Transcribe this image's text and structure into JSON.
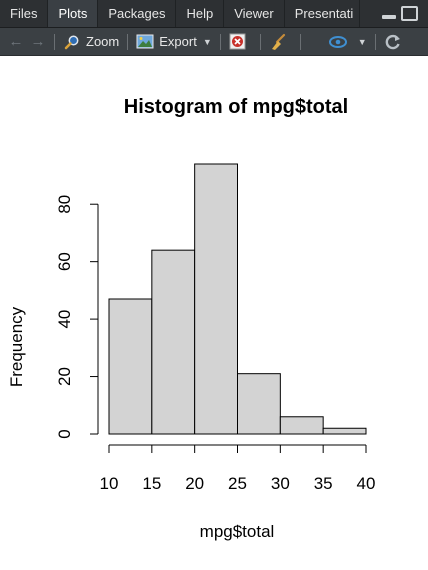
{
  "tabs": [
    {
      "label": "Files",
      "active": false
    },
    {
      "label": "Plots",
      "active": true
    },
    {
      "label": "Packages",
      "active": false
    },
    {
      "label": "Help",
      "active": false
    },
    {
      "label": "Viewer",
      "active": false
    },
    {
      "label": "Presentati",
      "active": false
    }
  ],
  "toolbar": {
    "zoom_label": "Zoom",
    "export_label": "Export"
  },
  "icons": {
    "back": "arrow-left-icon",
    "forward": "arrow-right-icon",
    "zoom": "magnifier-icon",
    "export": "export-image-icon",
    "remove": "remove-plot-icon",
    "clear": "broom-icon",
    "publish": "publish-icon",
    "refresh": "refresh-icon"
  },
  "colors": {
    "tabbar_bg": "#2d3033",
    "toolbar_bg": "#3b4044",
    "bar_fill": "#d3d3d3",
    "bar_stroke": "#000000"
  },
  "chart_data": {
    "type": "bar",
    "title": "Histogram of mpg$total",
    "xlabel": "mpg$total",
    "ylabel": "Frequency",
    "bins": [
      [
        10,
        15
      ],
      [
        15,
        20
      ],
      [
        20,
        25
      ],
      [
        25,
        30
      ],
      [
        30,
        35
      ],
      [
        35,
        40
      ]
    ],
    "values": [
      47,
      64,
      94,
      21,
      6,
      2
    ],
    "xticks": [
      10,
      15,
      20,
      25,
      30,
      35,
      40
    ],
    "yticks": [
      0,
      20,
      40,
      60,
      80
    ],
    "xlim": [
      10,
      40
    ],
    "ylim": [
      0,
      94
    ],
    "grid": false
  }
}
